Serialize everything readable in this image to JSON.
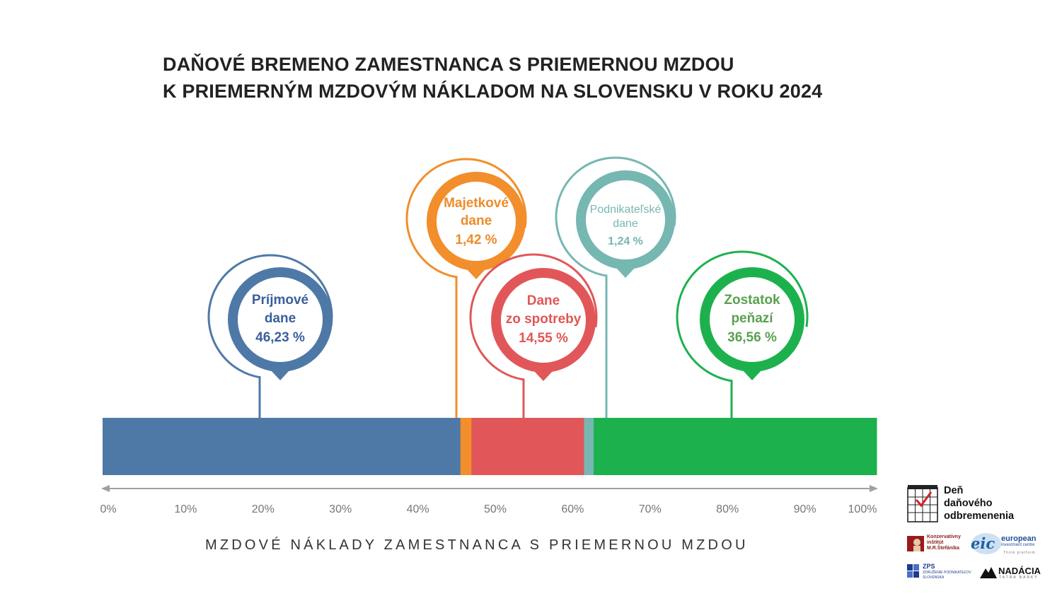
{
  "chart_data": {
    "type": "bar",
    "orientation": "horizontal-stacked",
    "title_lines": [
      "DAŇOVÉ BREMENO ZAMESTNANCA S PRIEMERNOU MZDOU",
      "K PRIEMERNÝM MZDOVÝM NÁKLADOM NA SLOVENSKU V ROKU 2024"
    ],
    "xlabel": "MZDOVÉ NÁKLADY ZAMESTNANCA S PRIEMERNOU MZDOU",
    "xlim": [
      0,
      100
    ],
    "ticks": [
      "0%",
      "10%",
      "20%",
      "30%",
      "40%",
      "50%",
      "60%",
      "70%",
      "80%",
      "90%",
      "100%"
    ],
    "segments": [
      {
        "label_lines": [
          "Príjmové",
          "dane"
        ],
        "value": 46.23,
        "value_label": "46,23 %",
        "color": "#4e79a7",
        "text_color": "#3a5f9c"
      },
      {
        "label_lines": [
          "Majetkové",
          "dane"
        ],
        "value": 1.42,
        "value_label": "1,42 %",
        "color": "#f28e2b",
        "text_color": "#ee8c2a"
      },
      {
        "label_lines": [
          "Dane",
          "zo spotreby"
        ],
        "value": 14.55,
        "value_label": "14,55 %",
        "color": "#e15759",
        "text_color": "#e05656"
      },
      {
        "label_lines": [
          "Podnikateľské",
          "dane"
        ],
        "value": 1.24,
        "value_label": "1,24 %",
        "color": "#76b7b2",
        "text_color": "#76b7b2"
      },
      {
        "label_lines": [
          "Zostatok",
          "peňazí"
        ],
        "value": 36.56,
        "value_label": "36,56 %",
        "color": "#1db14e",
        "text_color": "#59a14f"
      }
    ],
    "axis_color": "#a0a0a0"
  },
  "logos": {
    "den_danoveho": {
      "lines": [
        "Deň",
        "daňového",
        "odbremenenia"
      ]
    },
    "kimrs": {
      "lines": [
        "Konzervatívny",
        "inštitút",
        "M.R.Štefánika"
      ]
    },
    "eic": {
      "mark": "eic",
      "lines": [
        "european",
        "investment centre"
      ],
      "sub": "Think platform"
    },
    "zps": {
      "lines": [
        "ZPS",
        "ZDRUŽENIE PODNIKATEĽOV",
        "SLOVENSKA"
      ]
    },
    "nadacia": {
      "name": "NADÁCIA",
      "sub": "TATRA BANKY"
    }
  }
}
